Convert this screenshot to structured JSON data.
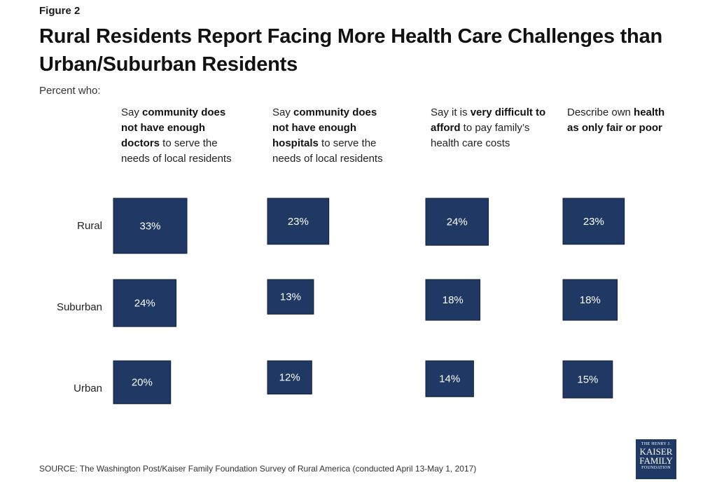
{
  "figure_label": "Figure 2",
  "title": "Rural Residents Report Facing More Health Care Challenges than Urban/Suburban Residents",
  "subtitle": "Percent who:",
  "columns": [
    {
      "pre": "Say ",
      "bold": "community does not have enough doctors",
      "post": " to serve the needs of local residents"
    },
    {
      "pre": "Say ",
      "bold": "community does not have enough hospitals",
      "post": " to serve the needs of local residents"
    },
    {
      "pre": "Say it is ",
      "bold": "very difficult to afford",
      "post": " to pay family’s health care costs"
    },
    {
      "pre": "Describe own ",
      "bold": "health as only fair or poor",
      "post": ""
    }
  ],
  "chart_data": {
    "type": "proportional-square grid",
    "rows": [
      "Rural",
      "Suburban",
      "Urban"
    ],
    "columns": [
      "Community lacks enough doctors",
      "Community lacks enough hospitals",
      "Very difficult to afford family health care costs",
      "Own health only fair or poor"
    ],
    "unit": "%",
    "values": [
      [
        33,
        23,
        24,
        23
      ],
      [
        24,
        13,
        18,
        18
      ],
      [
        20,
        12,
        14,
        15
      ]
    ],
    "fill_color": "#1f3864",
    "label_color": "#ffffff"
  },
  "source": "SOURCE: The Washington Post/Kaiser Family Foundation Survey of Rural America (conducted April 13-May 1, 2017)",
  "logo": {
    "line1": "THE HENRY J.",
    "line2": "KAISER",
    "line3": "FAMILY",
    "line4": "FOUNDATION"
  }
}
